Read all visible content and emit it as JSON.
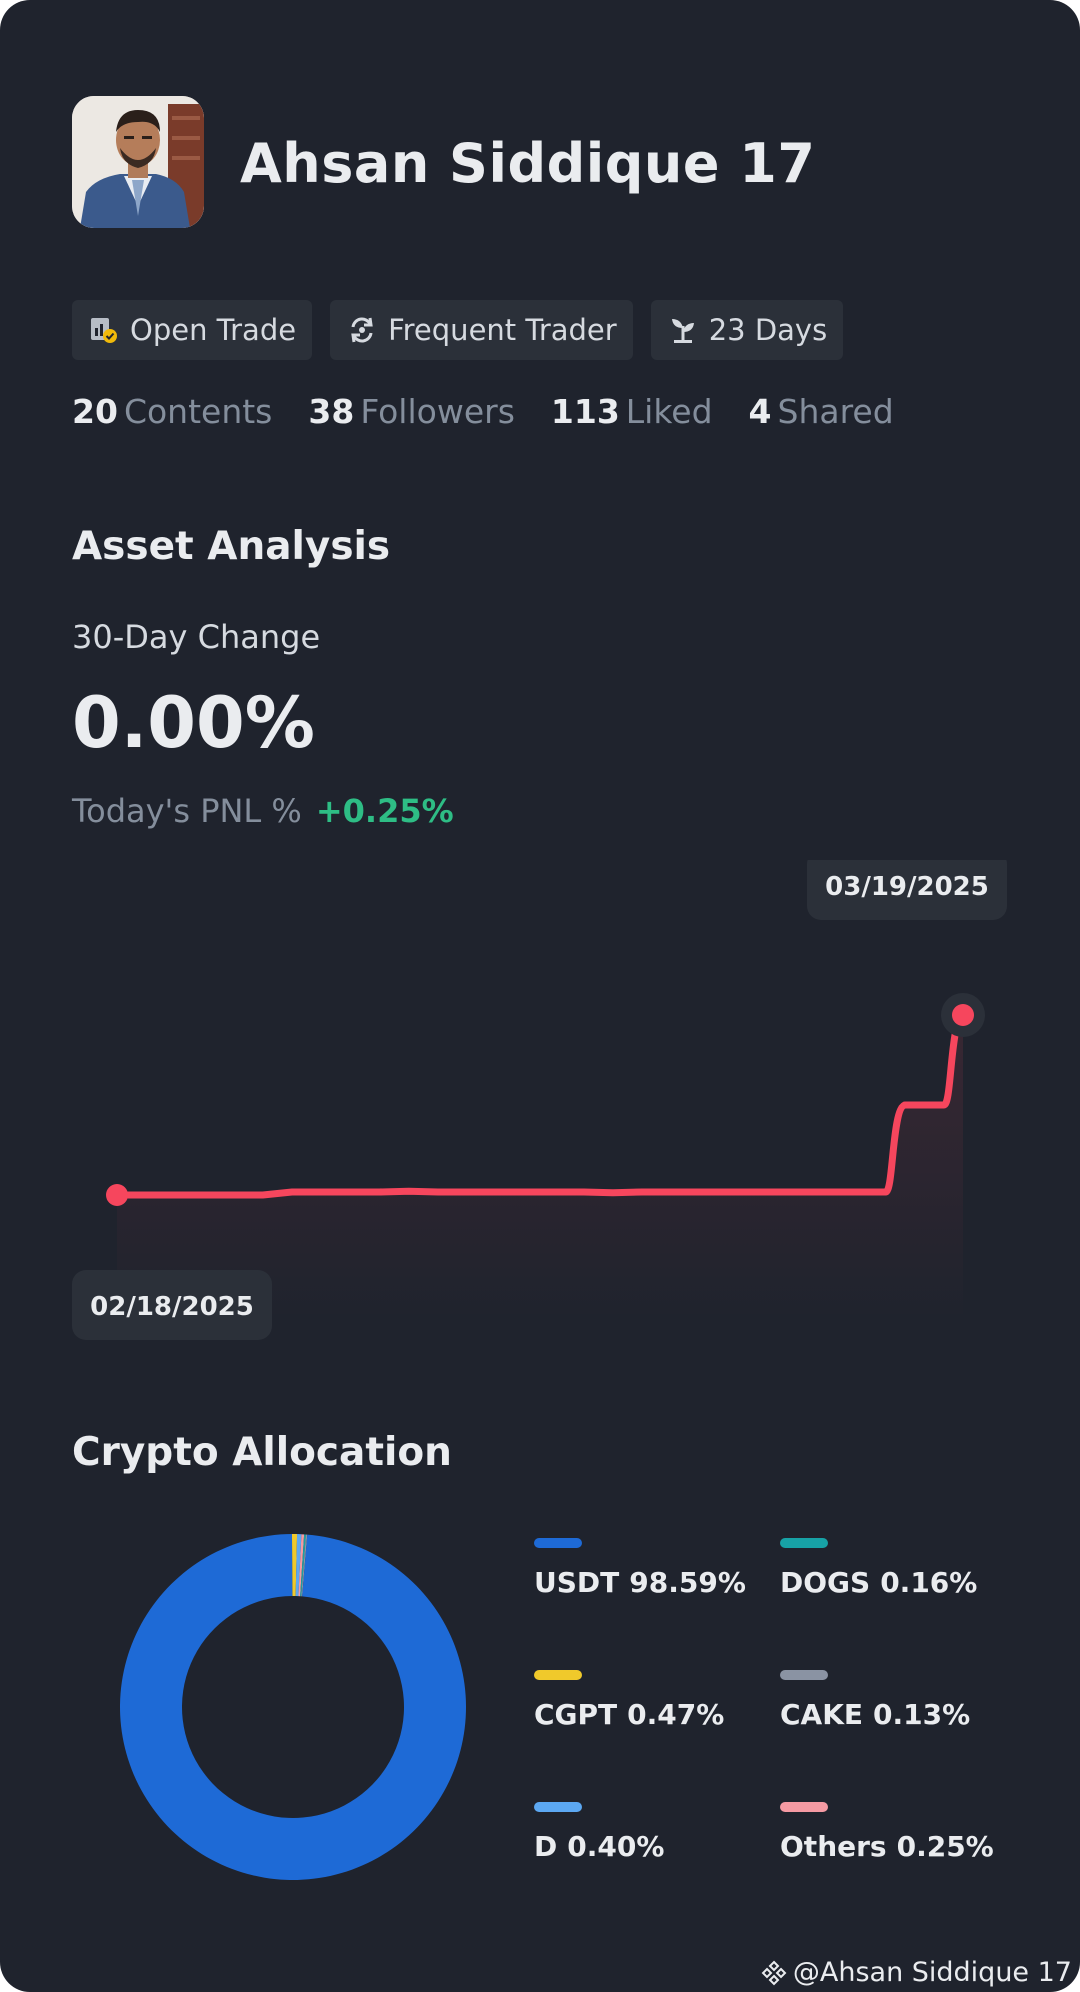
{
  "profile": {
    "name": "Ahsan Siddique 17",
    "avatar_icon": "profile-photo"
  },
  "tags": [
    {
      "label": "Open Trade",
      "icon": "open-trade-icon"
    },
    {
      "label": "Frequent Trader",
      "icon": "frequent-trader-icon"
    },
    {
      "label": "23 Days",
      "icon": "sprout-icon"
    }
  ],
  "stats": [
    {
      "value": "20",
      "label": "Contents"
    },
    {
      "value": "38",
      "label": "Followers"
    },
    {
      "value": "113",
      "label": "Liked"
    },
    {
      "value": "4",
      "label": "Shared"
    }
  ],
  "asset_analysis": {
    "title": "Asset Analysis",
    "change_label": "30-Day Change",
    "change_value": "0.00%",
    "pnl_label": "Today's PNL %",
    "pnl_value": "+0.25%"
  },
  "chart_data": {
    "type": "line",
    "title": "",
    "xlabel": "",
    "ylabel": "",
    "start_label": "02/18/2025",
    "end_label": "03/19/2025",
    "x": [
      "02/18/2025",
      "02/19/2025",
      "02/20/2025",
      "02/21/2025",
      "02/22/2025",
      "02/23/2025",
      "02/24/2025",
      "02/25/2025",
      "02/26/2025",
      "02/27/2025",
      "02/28/2025",
      "03/01/2025",
      "03/02/2025",
      "03/03/2025",
      "03/04/2025",
      "03/05/2025",
      "03/06/2025",
      "03/07/2025",
      "03/08/2025",
      "03/09/2025",
      "03/10/2025",
      "03/11/2025",
      "03/12/2025",
      "03/13/2025",
      "03/14/2025",
      "03/15/2025",
      "03/16/2025",
      "03/17/2025",
      "03/18/2025",
      "03/19/2025"
    ],
    "y": [
      0.0,
      0.0,
      0.0,
      0.0,
      0.0,
      0.0,
      0.004,
      0.004,
      0.004,
      0.004,
      0.005,
      0.004,
      0.004,
      0.004,
      0.004,
      0.004,
      0.004,
      0.003,
      0.004,
      0.004,
      0.004,
      0.004,
      0.004,
      0.004,
      0.004,
      0.004,
      0.004,
      0.12,
      0.12,
      0.24
    ],
    "ylim": [
      -0.02,
      0.3
    ],
    "grid": true,
    "line_color": "#f6465d"
  },
  "allocation": {
    "title": "Crypto Allocation",
    "items": [
      {
        "name": "USDT",
        "pct_label": "98.59%",
        "value": 98.59,
        "color": "#1e6ad6"
      },
      {
        "name": "DOGS",
        "pct_label": "0.16%",
        "value": 0.16,
        "color": "#17a2a6"
      },
      {
        "name": "CGPT",
        "pct_label": "0.47%",
        "value": 0.47,
        "color": "#f0c92b"
      },
      {
        "name": "CAKE",
        "pct_label": "0.13%",
        "value": 0.13,
        "color": "#8a93a3"
      },
      {
        "name": "D",
        "pct_label": "0.40%",
        "value": 0.4,
        "color": "#5ca8f2"
      },
      {
        "name": "Others",
        "pct_label": "0.25%",
        "value": 0.25,
        "color": "#f59aa3"
      }
    ]
  },
  "watermark": {
    "text": "@Ahsan Siddique 17",
    "icon": "binance-logo-icon"
  }
}
